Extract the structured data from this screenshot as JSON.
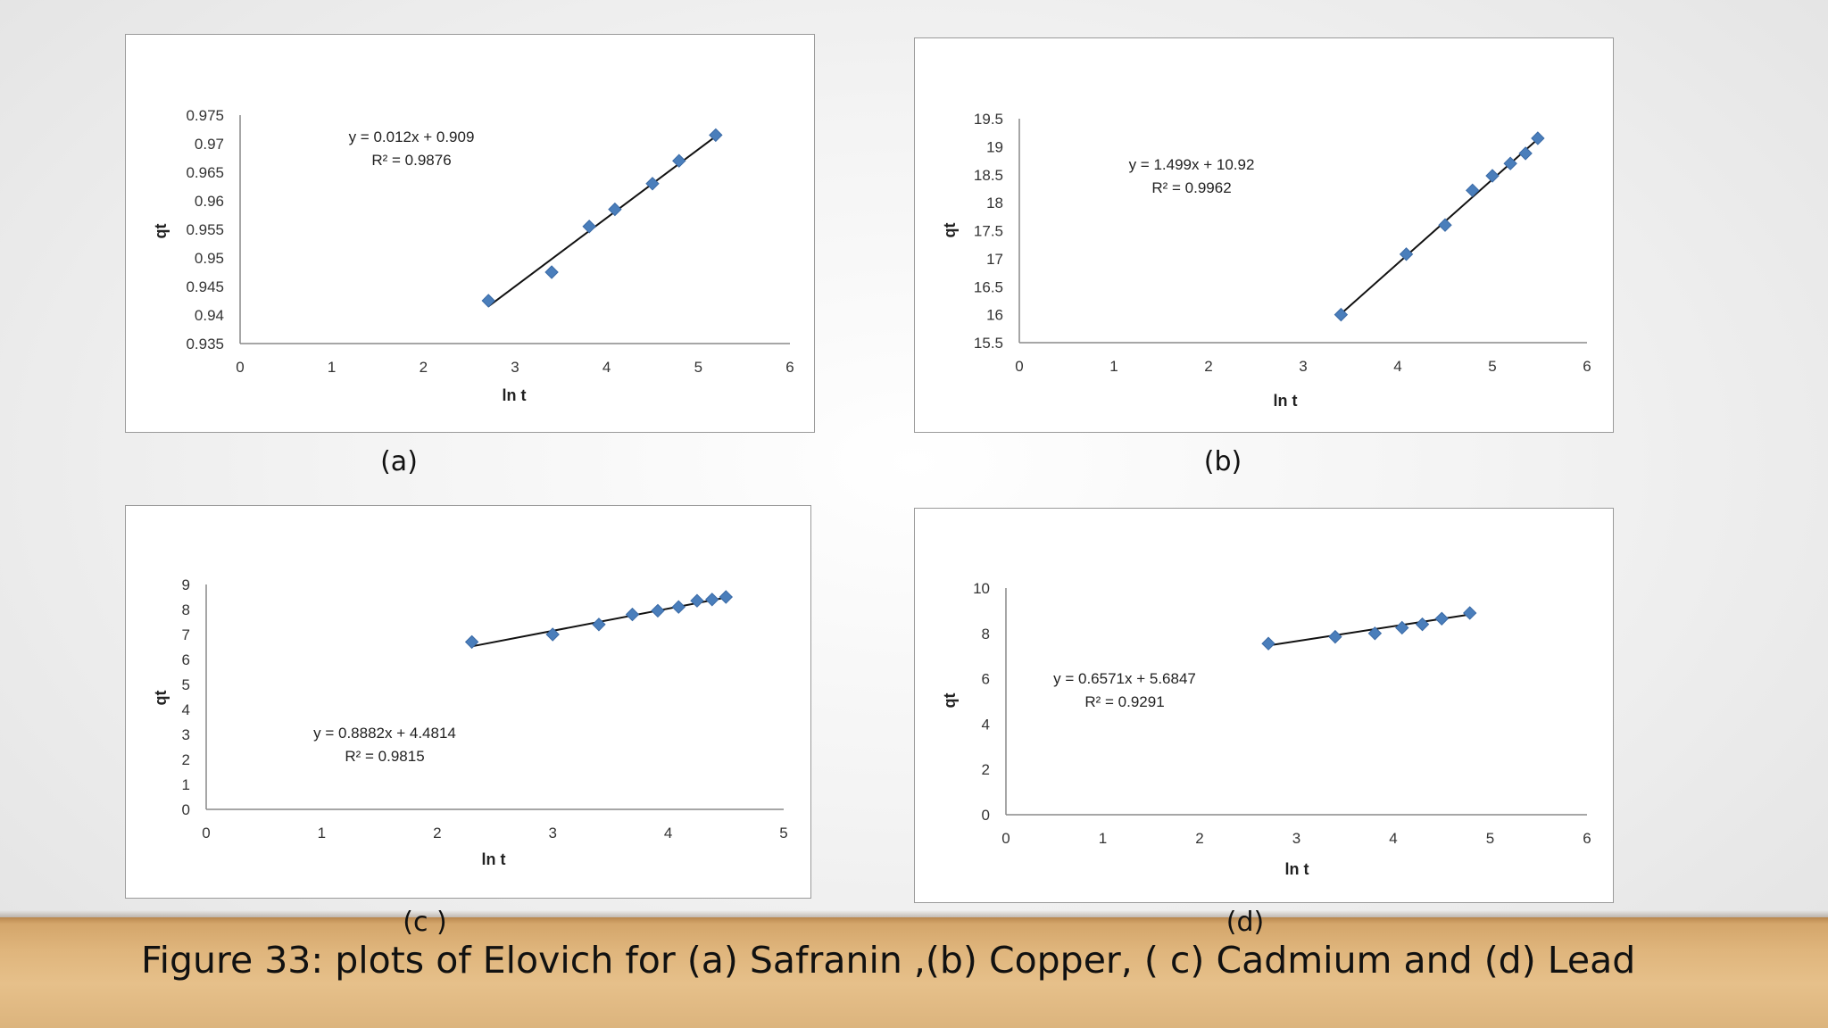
{
  "caption": "Figure 33: plots of Elovich for (a) Safranin ,(b) Copper, ( c) Cadmium  and (d) Lead",
  "panels": [
    {
      "label": "(a)"
    },
    {
      "label": "(b)"
    },
    {
      "label": "(c )"
    },
    {
      "label": "(d)"
    }
  ],
  "chart_data": [
    {
      "type": "scatter",
      "xlabel": "ln t",
      "ylabel": "qt",
      "xlim": [
        0,
        6
      ],
      "ylim": [
        0.935,
        0.975
      ],
      "xticks": [
        "0",
        "1",
        "2",
        "3",
        "4",
        "5",
        "6"
      ],
      "yticks": [
        "0.935",
        "0.94",
        "0.945",
        "0.95",
        "0.955",
        "0.96",
        "0.965",
        "0.97",
        "0.975"
      ],
      "points": [
        [
          2.71,
          0.9425
        ],
        [
          3.4,
          0.9475
        ],
        [
          3.81,
          0.9555
        ],
        [
          4.09,
          0.9585
        ],
        [
          4.5,
          0.963
        ],
        [
          4.79,
          0.967
        ],
        [
          5.19,
          0.9715
        ]
      ],
      "trendline": {
        "slope": 0.012,
        "intercept": 0.909,
        "x_range": [
          2.71,
          5.19
        ]
      },
      "equation": "y = 0.012x + 0.909",
      "r2": "R² = 0.9876",
      "marker_color": "#4a7ebb"
    },
    {
      "type": "scatter",
      "xlabel": "ln t",
      "ylabel": "qt",
      "xlim": [
        0,
        6
      ],
      "ylim": [
        15.5,
        19.5
      ],
      "xticks": [
        "0",
        "1",
        "2",
        "3",
        "4",
        "5",
        "6"
      ],
      "yticks": [
        "15.5",
        "16",
        "16.5",
        "17",
        "17.5",
        "18",
        "18.5",
        "19",
        "19.5"
      ],
      "points": [
        [
          3.4,
          16.0
        ],
        [
          4.09,
          17.08
        ],
        [
          4.5,
          17.6
        ],
        [
          4.79,
          18.22
        ],
        [
          5.0,
          18.48
        ],
        [
          5.19,
          18.7
        ],
        [
          5.35,
          18.88
        ],
        [
          5.48,
          19.15
        ]
      ],
      "trendline": {
        "slope": 1.499,
        "intercept": 10.92,
        "x_range": [
          3.4,
          5.48
        ]
      },
      "equation": "y = 1.499x + 10.92",
      "r2": "R² = 0.9962",
      "marker_color": "#4a7ebb"
    },
    {
      "type": "scatter",
      "xlabel": "ln t",
      "ylabel": "qt",
      "xlim": [
        0,
        5
      ],
      "ylim": [
        0,
        9
      ],
      "xticks": [
        "0",
        "1",
        "2",
        "3",
        "4",
        "5"
      ],
      "yticks": [
        "0",
        "1",
        "2",
        "3",
        "4",
        "5",
        "6",
        "7",
        "8",
        "9"
      ],
      "points": [
        [
          2.3,
          6.7
        ],
        [
          3.0,
          7.0
        ],
        [
          3.4,
          7.4
        ],
        [
          3.69,
          7.8
        ],
        [
          3.91,
          7.95
        ],
        [
          4.09,
          8.1
        ],
        [
          4.25,
          8.35
        ],
        [
          4.38,
          8.4
        ],
        [
          4.5,
          8.5
        ]
      ],
      "trendline": {
        "slope": 0.8882,
        "intercept": 4.4814,
        "x_range": [
          2.3,
          4.5
        ]
      },
      "equation": "y = 0.8882x + 4.4814",
      "r2": "R² = 0.9815",
      "marker_color": "#4a7ebb"
    },
    {
      "type": "scatter",
      "xlabel": "ln t",
      "ylabel": "qt",
      "xlim": [
        0,
        6
      ],
      "ylim": [
        0,
        10
      ],
      "xticks": [
        "0",
        "1",
        "2",
        "3",
        "4",
        "5",
        "6"
      ],
      "yticks": [
        "0",
        "2",
        "4",
        "6",
        "8",
        "10"
      ],
      "points": [
        [
          2.71,
          7.55
        ],
        [
          3.4,
          7.85
        ],
        [
          3.81,
          8.0
        ],
        [
          4.09,
          8.25
        ],
        [
          4.3,
          8.4
        ],
        [
          4.5,
          8.65
        ],
        [
          4.79,
          8.9
        ]
      ],
      "trendline": {
        "slope": 0.6571,
        "intercept": 5.6847,
        "x_range": [
          2.71,
          4.79
        ]
      },
      "equation": "y = 0.6571x + 5.6847",
      "r2": "R² = 0.9291",
      "marker_color": "#4a7ebb"
    }
  ]
}
